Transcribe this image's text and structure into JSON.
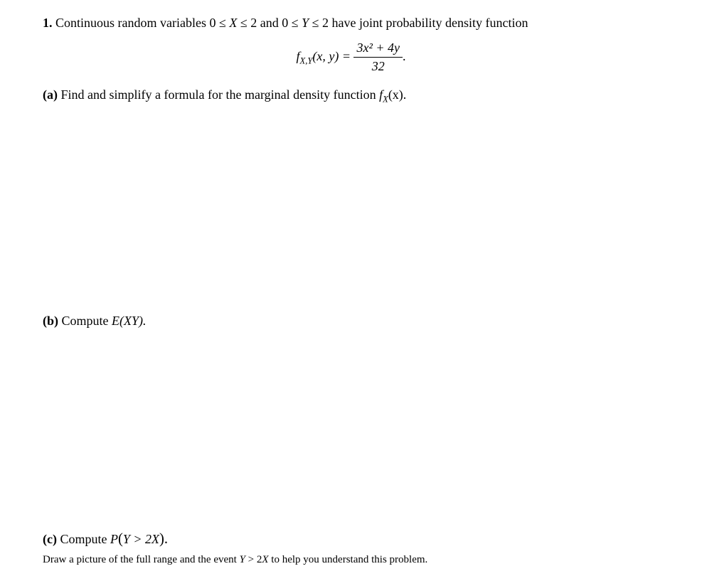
{
  "problem": {
    "number": "1.",
    "intro_prefix": "Continuous random variables 0 ≤ ",
    "intro_mid1": " ≤ 2 and 0 ≤ ",
    "intro_mid2": " ≤ 2 have joint probability density function",
    "var_x": "X",
    "var_y": "Y",
    "formula": {
      "lhs_f": "f",
      "lhs_sub": "X,Y",
      "lhs_args": "(x, y) = ",
      "numerator": "3x² + 4y",
      "denominator": "32",
      "trailing": "."
    }
  },
  "parts": {
    "a": {
      "label": "(a)",
      "text_prefix": " Find and simplify a formula for the marginal density function ",
      "fx_f": "f",
      "fx_sub": "X",
      "fx_args": "(x).",
      "text_suffix": ""
    },
    "b": {
      "label": "(b)",
      "text_prefix": " Compute ",
      "expr": "E(XY).",
      "text_suffix": ""
    },
    "c": {
      "label": "(c)",
      "text_prefix": " Compute ",
      "expr_P": "P",
      "expr_open": "(",
      "expr_inner": "Y > 2X",
      "expr_close": ").",
      "hint_prefix": "Draw a picture of the full range and the event ",
      "hint_ital": "Y",
      "hint_mid": " > 2",
      "hint_ital2": "X",
      "hint_suffix": " to help you understand this problem."
    }
  },
  "style": {
    "text_color": "#000000",
    "background_color": "#ffffff",
    "body_fontsize": 18,
    "hint_fontsize": 15,
    "font_family": "Times New Roman"
  }
}
